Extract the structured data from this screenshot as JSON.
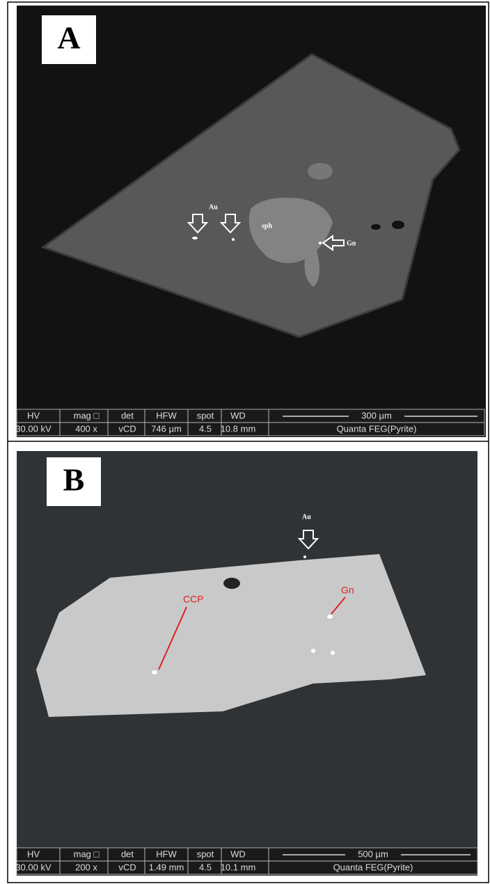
{
  "panels": [
    {
      "label": "A",
      "annotations": [
        "Au",
        "sph",
        "Gn"
      ],
      "info": {
        "headers": [
          "HV",
          "mag □",
          "det",
          "HFW",
          "spot",
          "WD"
        ],
        "values": [
          "30.00 kV",
          "400 x",
          "vCD",
          "746 µm",
          "4.5",
          "10.8 mm"
        ],
        "scale": "300 µm",
        "instrument": "Quanta FEG(Pyrite)"
      }
    },
    {
      "label": "B",
      "annotations": [
        "Au",
        "Gn",
        "CCP"
      ],
      "info": {
        "headers": [
          "HV",
          "mag □",
          "det",
          "HFW",
          "spot",
          "WD"
        ],
        "values": [
          "30.00 kV",
          "200 x",
          "vCD",
          "1.49 mm",
          "4.5",
          "10.1 mm"
        ],
        "scale": "500 µm",
        "instrument": "Quanta FEG(Pyrite)"
      }
    }
  ]
}
